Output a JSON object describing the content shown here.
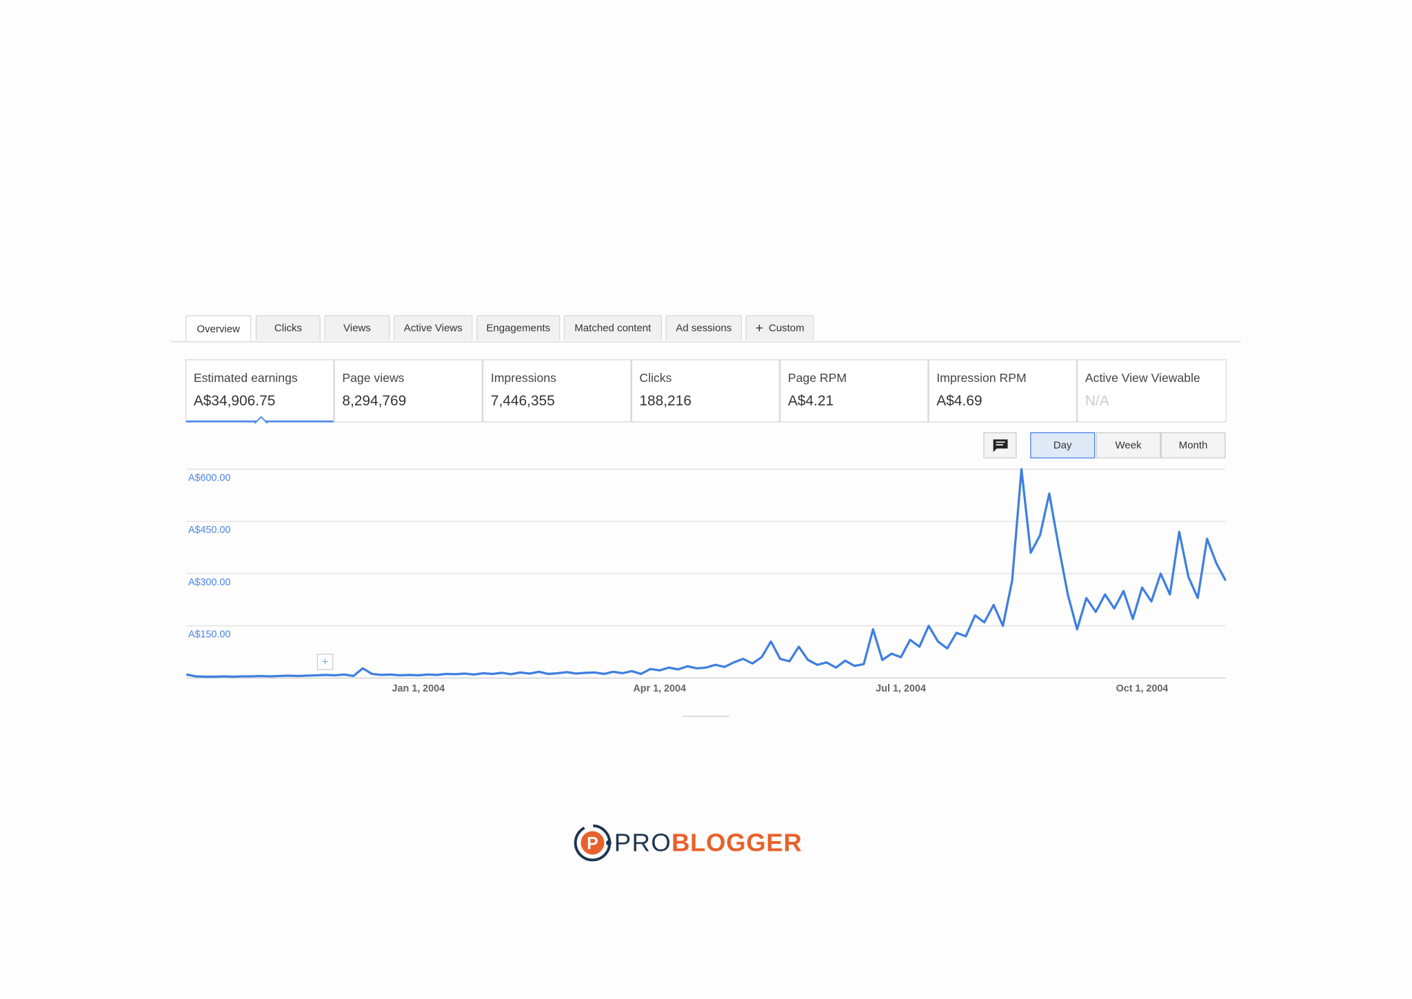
{
  "tabs": [
    "Overview",
    "Clicks",
    "Views",
    "Active Views",
    "Engagements",
    "Matched content",
    "Ad sessions",
    "Custom"
  ],
  "metrics": [
    {
      "label": "Estimated earnings",
      "value": "A$34,906.75"
    },
    {
      "label": "Page views",
      "value": "8,294,769"
    },
    {
      "label": "Impressions",
      "value": "7,446,355"
    },
    {
      "label": "Clicks",
      "value": "188,216"
    },
    {
      "label": "Page RPM",
      "value": "A$4.21"
    },
    {
      "label": "Impression RPM",
      "value": "A$4.69"
    },
    {
      "label": "Active View Viewable",
      "value": "N/A"
    }
  ],
  "periods": [
    "Day",
    "Week",
    "Month"
  ],
  "logo": {
    "pro": "PRO",
    "blogger": "BLOGGER"
  },
  "chart_data": {
    "type": "line",
    "color": "#3f7fe0",
    "categories": [
      null,
      null,
      null,
      null,
      null,
      null,
      null,
      null,
      null,
      null,
      null,
      null,
      null,
      null,
      null,
      null,
      null,
      null,
      null,
      null,
      null,
      null,
      null,
      null,
      null,
      "Jan 1, 2004",
      null,
      null,
      null,
      null,
      null,
      null,
      null,
      null,
      null,
      null,
      null,
      null,
      null,
      null,
      null,
      null,
      null,
      null,
      null,
      null,
      null,
      null,
      null,
      null,
      null,
      "Apr 1, 2004",
      null,
      null,
      null,
      null,
      null,
      null,
      null,
      null,
      null,
      null,
      null,
      null,
      null,
      null,
      null,
      null,
      null,
      null,
      null,
      null,
      null,
      null,
      null,
      null,
      null,
      "Jul 1, 2004",
      null,
      null,
      null,
      null,
      null,
      null,
      null,
      null,
      null,
      null,
      null,
      null,
      null,
      null,
      null,
      null,
      null,
      null,
      null,
      null,
      null,
      null,
      null,
      null,
      null,
      "Oct 1, 2004",
      null,
      null,
      null,
      null,
      null,
      null,
      null,
      null,
      null
    ],
    "values": [
      10,
      5,
      4,
      4,
      5,
      4,
      5,
      5,
      6,
      5,
      6,
      7,
      6,
      7,
      8,
      9,
      8,
      10,
      6,
      28,
      12,
      9,
      10,
      8,
      9,
      8,
      10,
      9,
      12,
      11,
      13,
      10,
      14,
      12,
      15,
      11,
      16,
      13,
      18,
      12,
      14,
      17,
      13,
      15,
      16,
      12,
      18,
      14,
      20,
      12,
      26,
      22,
      30,
      25,
      34,
      28,
      30,
      38,
      32,
      45,
      55,
      42,
      60,
      105,
      55,
      48,
      90,
      52,
      38,
      45,
      30,
      50,
      35,
      40,
      140,
      52,
      70,
      60,
      110,
      90,
      150,
      105,
      85,
      130,
      120,
      180,
      160,
      210,
      150,
      280,
      600,
      360,
      410,
      530,
      380,
      240,
      140,
      230,
      190,
      240,
      200,
      250,
      170,
      260,
      220,
      300,
      240,
      420,
      290,
      230,
      400,
      330,
      280
    ],
    "ylim": [
      0,
      600
    ],
    "yticks": [
      {
        "value": 150,
        "label": "A$150.00"
      },
      {
        "value": 300,
        "label": "A$300.00"
      },
      {
        "value": 450,
        "label": "A$450.00"
      },
      {
        "value": 600,
        "label": "A$600.00"
      }
    ],
    "grid": true
  }
}
